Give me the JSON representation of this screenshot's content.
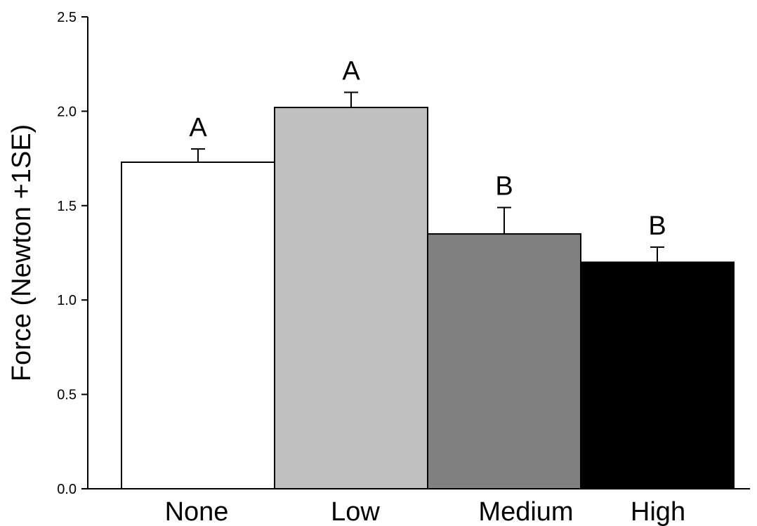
{
  "chart_data": {
    "type": "bar",
    "title": "",
    "xlabel": "",
    "ylabel": "Force (Newton +1SE)",
    "ylim": [
      0,
      2.5
    ],
    "yticks": [
      "0.0",
      "0.5",
      "1.0",
      "1.5",
      "2.0",
      "2.5"
    ],
    "categories": [
      "None",
      "Low",
      "Medium",
      "High"
    ],
    "values": [
      1.73,
      2.02,
      1.35,
      1.2
    ],
    "errors": [
      0.07,
      0.08,
      0.14,
      0.08
    ],
    "significance_labels": [
      "A",
      "A",
      "B",
      "B"
    ],
    "colors": [
      "#ffffff",
      "#c0c0c0",
      "#808080",
      "#000000"
    ],
    "grid": false,
    "legend": "none"
  }
}
